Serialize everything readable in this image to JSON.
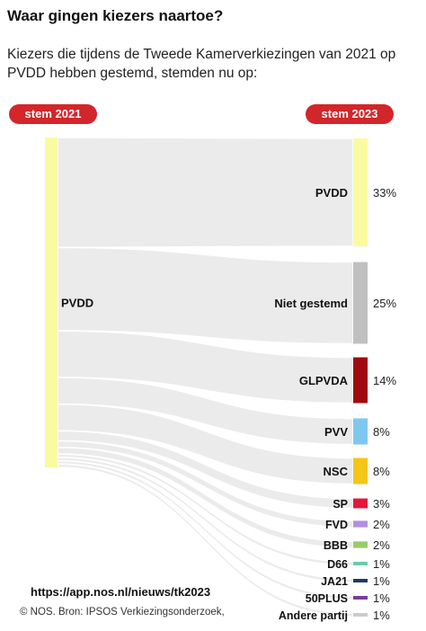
{
  "title": "Waar gingen kiezers naartoe?",
  "subtitle": "Kiezers die tijdens de Tweede Kamerverkiezingen van 2021 op PVDD hebben gestemd, stemden nu op:",
  "left_header": "stem 2021",
  "right_header": "stem 2023",
  "url": "https://app.nos.nl/nieuws/tk2023",
  "credit": "© NOS. Bron: IPSOS Verkiezingsonderzoek,",
  "chart_data": {
    "type": "sankey",
    "source": {
      "name": "PVDD",
      "color": "#fafaa0"
    },
    "targets": [
      {
        "name": "PVDD",
        "value": 33,
        "label": "33%",
        "color": "#fafaa0"
      },
      {
        "name": "Niet gestemd",
        "value": 25,
        "label": "25%",
        "color": "#c0c0c0"
      },
      {
        "name": "GLPVDA",
        "value": 14,
        "label": "14%",
        "color": "#9e0a0f"
      },
      {
        "name": "PVV",
        "value": 8,
        "label": "8%",
        "color": "#7ec8f0"
      },
      {
        "name": "NSC",
        "value": 8,
        "label": "8%",
        "color": "#f5c518"
      },
      {
        "name": "SP",
        "value": 3,
        "label": "3%",
        "color": "#e3173c"
      },
      {
        "name": "FVD",
        "value": 2,
        "label": "2%",
        "color": "#b48fdc"
      },
      {
        "name": "BBB",
        "value": 2,
        "label": "2%",
        "color": "#99cc66"
      },
      {
        "name": "D66",
        "value": 1,
        "label": "1%",
        "color": "#66ccaa"
      },
      {
        "name": "JA21",
        "value": 1,
        "label": "1%",
        "color": "#1f3a6b"
      },
      {
        "name": "50PLUS",
        "value": 1,
        "label": "1%",
        "color": "#7a3e9c"
      },
      {
        "name": "Andere partij",
        "value": 1,
        "label": "1%",
        "color": "#cccccc"
      }
    ]
  }
}
